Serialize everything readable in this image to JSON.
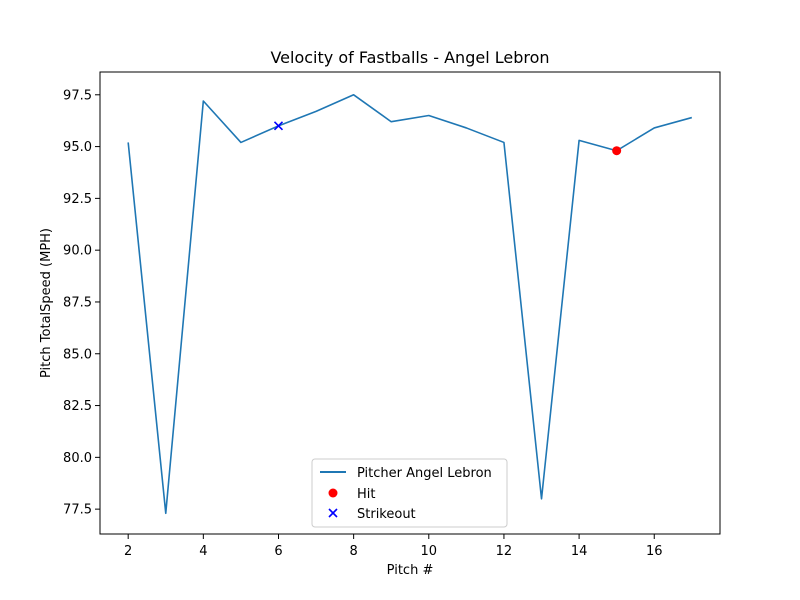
{
  "chart_data": {
    "type": "line",
    "title": "Velocity of Fastballs - Angel Lebron",
    "xlabel": "Pitch #",
    "ylabel": "Pitch TotalSpeed (MPH)",
    "xlim": [
      1.25,
      17.75
    ],
    "ylim": [
      76.3,
      98.6
    ],
    "xticks": [
      2,
      4,
      6,
      8,
      10,
      12,
      14,
      16
    ],
    "xtick_labels": [
      "2",
      "4",
      "6",
      "8",
      "10",
      "12",
      "14",
      "16"
    ],
    "yticks": [
      77.5,
      80.0,
      82.5,
      85.0,
      87.5,
      90.0,
      92.5,
      95.0,
      97.5
    ],
    "ytick_labels": [
      "77.5",
      "80.0",
      "82.5",
      "85.0",
      "87.5",
      "90.0",
      "92.5",
      "95.0",
      "97.5"
    ],
    "grid": false,
    "legend_position": "lower-center",
    "series": [
      {
        "name": "Pitcher Angel Lebron",
        "kind": "line",
        "color": "#1f77b4",
        "x": [
          2,
          3,
          4,
          5,
          6,
          7,
          8,
          9,
          10,
          11,
          12,
          13,
          14,
          15,
          16,
          17
        ],
        "y": [
          95.2,
          77.3,
          97.2,
          95.2,
          96.0,
          96.7,
          97.5,
          96.2,
          96.5,
          95.9,
          95.2,
          78.0,
          95.3,
          94.8,
          95.9,
          96.4
        ]
      },
      {
        "name": "Hit",
        "kind": "scatter",
        "marker": "circle",
        "color": "#ff0000",
        "x": [
          15
        ],
        "y": [
          94.8
        ]
      },
      {
        "name": "Strikeout",
        "kind": "scatter",
        "marker": "x",
        "color": "#0000ff",
        "x": [
          6
        ],
        "y": [
          96.0
        ]
      }
    ]
  }
}
